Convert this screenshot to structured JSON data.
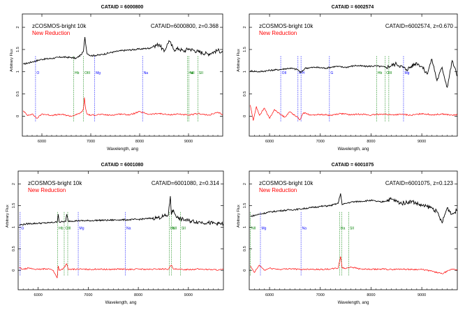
{
  "chart_data": [
    {
      "type": "line",
      "title": "CATAID = 6000800",
      "xlabel": "Wavelength, ang",
      "ylabel": "Arbitrary Flux",
      "xlim": [
        5600,
        9700
      ],
      "ylim": [
        -0.45,
        2.3
      ],
      "xticks": [
        6000,
        7000,
        8000,
        9000
      ],
      "yticks": [
        0,
        0.5,
        1,
        1.5,
        2
      ],
      "legend": [
        "zCOSMOS-bright 10k",
        "New Reduction"
      ],
      "info": "CATAID=6000800, z=0.368",
      "series": [
        {
          "name": "zCOSMOS-bright 10k",
          "color": "#000000",
          "x": [
            5620,
            5800,
            6000,
            6200,
            6400,
            6600,
            6700,
            6800,
            6850,
            6880,
            6920,
            7000,
            7200,
            7400,
            7600,
            7800,
            8000,
            8200,
            8300,
            8400,
            8500,
            8600,
            8700,
            8800,
            8900,
            9000,
            9200,
            9400,
            9600,
            9700
          ],
          "y": [
            1.17,
            1.22,
            1.28,
            1.3,
            1.33,
            1.32,
            1.3,
            1.38,
            1.46,
            1.78,
            1.42,
            1.36,
            1.38,
            1.43,
            1.47,
            1.49,
            1.51,
            1.53,
            1.58,
            1.62,
            1.45,
            1.7,
            1.5,
            1.52,
            1.46,
            1.52,
            1.45,
            1.4,
            1.48,
            1.44
          ]
        },
        {
          "name": "New Reduction",
          "color": "#ff0000",
          "x": [
            5620,
            5700,
            5800,
            5900,
            6000,
            6200,
            6400,
            6600,
            6700,
            6800,
            6850,
            6870,
            6890,
            6920,
            7000,
            7200,
            7400,
            7600,
            7800,
            8000,
            8200,
            8400,
            8600,
            8800,
            9000,
            9200,
            9400,
            9600,
            9700
          ],
          "y": [
            0.12,
            0.02,
            0.05,
            -0.05,
            0.05,
            0.02,
            0.04,
            0.0,
            0.03,
            0.08,
            0.15,
            0.42,
            0.2,
            0.05,
            0.02,
            0.04,
            0.02,
            0.05,
            0.03,
            0.1,
            0.04,
            0.06,
            0.03,
            0.05,
            0.02,
            0.06,
            0.02,
            0.08,
            0.04
          ]
        }
      ],
      "lines": [
        {
          "label": "O",
          "x": 5870,
          "color": "#0000ff"
        },
        {
          "label": "Na",
          "x": 8060,
          "color": "#0000ff"
        },
        {
          "label": "Mg",
          "x": 7080,
          "color": "#0000ff"
        },
        {
          "label": "Hb",
          "x": 6650,
          "color": "#008000"
        },
        {
          "label": "OIII",
          "x": 6850,
          "color": "#008000"
        },
        {
          "label": "Ha",
          "x": 8980,
          "color": "#008000"
        },
        {
          "label": "NII",
          "x": 9010,
          "color": "#008000"
        },
        {
          "label": "SII",
          "x": 9190,
          "color": "#008000"
        }
      ]
    },
    {
      "type": "line",
      "title": "CATAID = 6002574",
      "xlabel": "Wavelength, ang",
      "ylabel": "Arbitrary Flux",
      "xlim": [
        5600,
        9700
      ],
      "ylim": [
        -0.45,
        2.3
      ],
      "xticks": [
        6000,
        7000,
        8000,
        9000
      ],
      "yticks": [
        0,
        0.5,
        1,
        1.5,
        2
      ],
      "legend": [
        "zCOSMOS-bright 10k",
        "New Reduction"
      ],
      "info": "CATAID=6002574, z=0.670",
      "series": [
        {
          "name": "zCOSMOS-bright 10k",
          "color": "#000000",
          "x": [
            5620,
            5800,
            6000,
            6200,
            6400,
            6550,
            6620,
            6700,
            6900,
            7100,
            7300,
            7500,
            7700,
            7900,
            8100,
            8300,
            8500,
            8700,
            8900,
            9000,
            9100,
            9200,
            9300,
            9400,
            9500,
            9600,
            9700
          ],
          "y": [
            1.02,
            1.0,
            1.03,
            1.05,
            1.08,
            1.05,
            0.98,
            1.08,
            1.1,
            1.08,
            1.12,
            1.1,
            1.14,
            1.12,
            1.13,
            1.1,
            1.18,
            1.05,
            1.2,
            1.12,
            0.95,
            1.28,
            0.8,
            1.1,
            0.65,
            1.25,
            0.9
          ]
        },
        {
          "name": "New Reduction",
          "color": "#ff0000",
          "x": [
            5620,
            5680,
            5740,
            5800,
            5900,
            6000,
            6100,
            6200,
            6300,
            6400,
            6500,
            6600,
            6650,
            6700,
            6800,
            7000,
            7200,
            7400,
            7600,
            7800,
            8000,
            8200,
            8400,
            8600,
            8800,
            9000,
            9200,
            9400,
            9600,
            9700
          ],
          "y": [
            0.25,
            -0.1,
            0.22,
            0.02,
            0.18,
            -0.05,
            0.15,
            0.05,
            -0.02,
            0.1,
            0.02,
            -0.08,
            0.05,
            0.08,
            0.02,
            0.04,
            0.02,
            0.06,
            0.03,
            0.05,
            0.02,
            0.05,
            0.03,
            0.04,
            0.02,
            0.06,
            0.03,
            0.05,
            0.02,
            0.03
          ]
        }
      ],
      "lines": [
        {
          "label": "OII",
          "x": 6220,
          "color": "#0000ff"
        },
        {
          "label": "K",
          "x": 6560,
          "color": "#0000ff"
        },
        {
          "label": "H",
          "x": 6620,
          "color": "#0000ff"
        },
        {
          "label": "G",
          "x": 7180,
          "color": "#0000ff"
        },
        {
          "label": "Mg",
          "x": 8640,
          "color": "#0000ff"
        },
        {
          "label": "Hb",
          "x": 8110,
          "color": "#008000"
        },
        {
          "label": "OIII",
          "x": 8280,
          "color": "#008000"
        },
        {
          "label": "OIII2",
          "x": 8350,
          "color": "#008000"
        }
      ]
    },
    {
      "type": "line",
      "title": "CATAID = 6001080",
      "xlabel": "Wavelength, ang",
      "ylabel": "Arbitrary Flux",
      "xlim": [
        5600,
        9700
      ],
      "ylim": [
        -0.45,
        2.3
      ],
      "xticks": [
        6000,
        7000,
        8000,
        9000
      ],
      "yticks": [
        0,
        0.5,
        1,
        1.5,
        2
      ],
      "legend": [
        "zCOSMOS-bright 10k",
        "New Reduction"
      ],
      "info": "CATAID=6001080, z=0.314",
      "series": [
        {
          "name": "zCOSMOS-bright 10k",
          "color": "#000000",
          "x": [
            5620,
            5800,
            6000,
            6200,
            6380,
            6400,
            6420,
            6550,
            6570,
            6600,
            6800,
            7000,
            7200,
            7400,
            7600,
            7800,
            8000,
            8200,
            8400,
            8600,
            8640,
            8660,
            8680,
            8800,
            9000,
            9200,
            9400,
            9600,
            9700
          ],
          "y": [
            1.05,
            1.08,
            1.09,
            1.1,
            1.12,
            1.3,
            1.12,
            1.13,
            1.3,
            1.14,
            1.15,
            1.15,
            1.16,
            1.16,
            1.17,
            1.17,
            1.18,
            1.2,
            1.22,
            1.28,
            1.72,
            1.3,
            1.4,
            1.2,
            1.15,
            1.12,
            1.1,
            1.08,
            1.07
          ]
        },
        {
          "name": "New Reduction",
          "color": "#ff0000",
          "x": [
            5620,
            5700,
            5800,
            6000,
            6200,
            6300,
            6380,
            6400,
            6420,
            6500,
            6570,
            6600,
            6800,
            7000,
            7200,
            7400,
            7600,
            7800,
            8000,
            8200,
            8400,
            8600,
            8660,
            8700,
            8800,
            9000,
            9200,
            9400,
            9600,
            9700
          ],
          "y": [
            0.06,
            0.02,
            0.05,
            0.02,
            0.04,
            0.0,
            -0.18,
            0.1,
            0.0,
            0.04,
            0.15,
            0.02,
            0.03,
            0.02,
            0.03,
            0.02,
            0.03,
            0.02,
            0.03,
            0.02,
            0.03,
            0.03,
            0.12,
            0.03,
            0.02,
            0.02,
            0.03,
            0.02,
            0.01,
            0.02
          ]
        }
      ],
      "lines": [
        {
          "label": "G",
          "x": 5640,
          "color": "#0000ff"
        },
        {
          "label": "Hb",
          "x": 6390,
          "color": "#008000"
        },
        {
          "label": "OIII",
          "x": 6520,
          "color": "#008000"
        },
        {
          "label": "OIII2",
          "x": 6590,
          "color": "#008000"
        },
        {
          "label": "Mg",
          "x": 6800,
          "color": "#0000ff"
        },
        {
          "label": "Na",
          "x": 7740,
          "color": "#0000ff"
        },
        {
          "label": "Ha",
          "x": 8620,
          "color": "#008000"
        },
        {
          "label": "NII",
          "x": 8660,
          "color": "#008000"
        },
        {
          "label": "SII",
          "x": 8840,
          "color": "#008000"
        }
      ]
    },
    {
      "type": "line",
      "title": "CATAID = 6001075",
      "xlabel": "Wavelength, ang",
      "ylabel": "Arbitrary Flux",
      "xlim": [
        5600,
        9700
      ],
      "ylim": [
        -0.45,
        2.3
      ],
      "xticks": [
        6000,
        7000,
        8000,
        9000
      ],
      "yticks": [
        0,
        0.5,
        1,
        1.5,
        2
      ],
      "legend": [
        "zCOSMOS-bright 10k",
        "New Reduction"
      ],
      "info": "CATAID=6001075, z=0.123",
      "series": [
        {
          "name": "zCOSMOS-bright 10k",
          "color": "#000000",
          "x": [
            5620,
            5800,
            6000,
            6200,
            6400,
            6600,
            6800,
            7000,
            7200,
            7350,
            7400,
            7430,
            7500,
            7600,
            7800,
            8000,
            8200,
            8400,
            8600,
            8800,
            9000,
            9200,
            9300,
            9400,
            9500,
            9600,
            9700
          ],
          "y": [
            1.25,
            1.3,
            1.35,
            1.38,
            1.4,
            1.42,
            1.45,
            1.48,
            1.5,
            1.55,
            1.78,
            1.52,
            1.55,
            1.58,
            1.6,
            1.62,
            1.58,
            1.65,
            1.55,
            1.6,
            1.5,
            1.45,
            1.35,
            1.1,
            1.45,
            1.3,
            1.4
          ]
        },
        {
          "name": "New Reduction",
          "color": "#ff0000",
          "x": [
            5620,
            5700,
            5800,
            5900,
            6000,
            6200,
            6400,
            6600,
            6800,
            7000,
            7200,
            7350,
            7400,
            7430,
            7500,
            7600,
            7800,
            8000,
            8200,
            8400,
            8600,
            8800,
            9000,
            9200,
            9400,
            9600,
            9700
          ],
          "y": [
            0.1,
            -0.05,
            0.12,
            0.0,
            0.05,
            0.02,
            0.04,
            0.02,
            0.03,
            0.02,
            0.03,
            0.05,
            0.32,
            0.06,
            0.04,
            0.08,
            0.03,
            0.02,
            0.03,
            0.02,
            0.03,
            0.02,
            0.02,
            -0.02,
            -0.08,
            0.03,
            0.02
          ]
        }
      ],
      "lines": [
        {
          "label": "NII",
          "x": 5620,
          "color": "#008000"
        },
        {
          "label": "Mg",
          "x": 5820,
          "color": "#0000ff"
        },
        {
          "label": "Na",
          "x": 6620,
          "color": "#0000ff"
        },
        {
          "label": "Ha",
          "x": 7380,
          "color": "#008000"
        },
        {
          "label": "NII2",
          "x": 7420,
          "color": "#008000"
        },
        {
          "label": "SII",
          "x": 7560,
          "color": "#008000"
        }
      ]
    }
  ]
}
